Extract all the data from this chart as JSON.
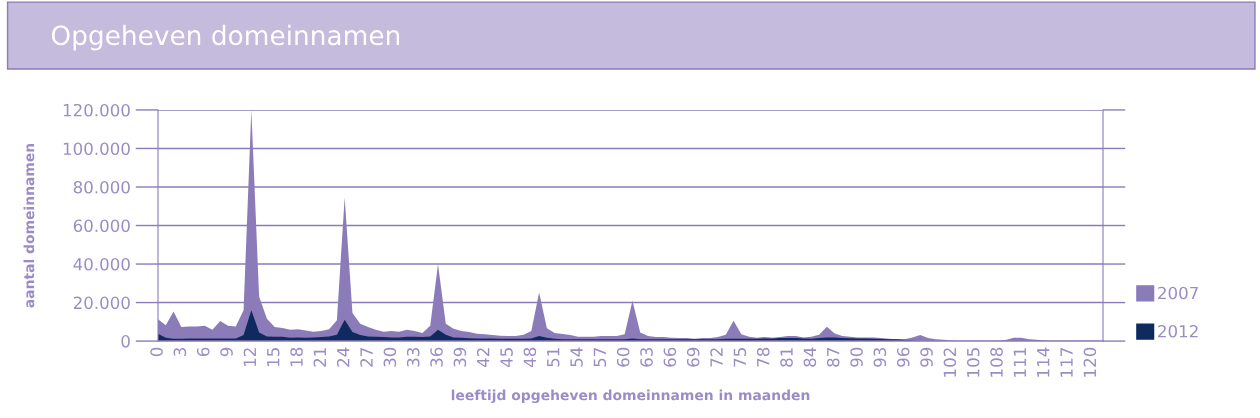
{
  "chart_data": {
    "type": "area",
    "title": "Opgeheven domeinnamen",
    "xlabel": "leeftijd opgeheven domeinnamen in maanden",
    "ylabel": "aantal domeinnamen",
    "x": [
      0,
      1,
      2,
      3,
      4,
      5,
      6,
      7,
      8,
      9,
      10,
      11,
      12,
      13,
      14,
      15,
      16,
      17,
      18,
      19,
      20,
      21,
      22,
      23,
      24,
      25,
      26,
      27,
      28,
      29,
      30,
      31,
      32,
      33,
      34,
      35,
      36,
      37,
      38,
      39,
      40,
      41,
      42,
      43,
      44,
      45,
      46,
      47,
      48,
      49,
      50,
      51,
      52,
      53,
      54,
      55,
      56,
      57,
      58,
      59,
      60,
      61,
      62,
      63,
      64,
      65,
      66,
      67,
      68,
      69,
      70,
      71,
      72,
      73,
      74,
      75,
      76,
      77,
      78,
      79,
      80,
      81,
      82,
      83,
      84,
      85,
      86,
      87,
      88,
      89,
      90,
      91,
      92,
      93,
      94,
      95,
      96,
      97,
      98,
      99,
      100,
      101,
      102,
      103,
      104,
      105,
      106,
      107,
      108,
      109,
      110,
      111,
      112,
      113,
      114,
      115,
      116,
      117,
      118,
      119,
      120,
      121
    ],
    "series": [
      {
        "name": "2007",
        "color": "#8b7bb8",
        "values": [
          11400,
          8200,
          15300,
          7300,
          7600,
          7600,
          8000,
          5900,
          10400,
          8000,
          7600,
          16000,
          120000,
          23200,
          11600,
          7300,
          6800,
          5900,
          6200,
          5500,
          4900,
          5200,
          6200,
          10800,
          74600,
          14600,
          9000,
          7300,
          5900,
          4900,
          5200,
          4900,
          5900,
          5200,
          4200,
          8000,
          39900,
          9000,
          6400,
          5200,
          4700,
          3800,
          3500,
          3100,
          2800,
          2600,
          2600,
          3300,
          5200,
          25200,
          6600,
          4200,
          3700,
          3100,
          2300,
          2300,
          2300,
          2600,
          2600,
          2600,
          3500,
          20900,
          4500,
          2600,
          2100,
          2100,
          1700,
          1600,
          1600,
          1200,
          1600,
          1600,
          2100,
          3300,
          10600,
          3500,
          2300,
          1700,
          2100,
          1700,
          2100,
          2600,
          2600,
          1900,
          2300,
          3300,
          7500,
          4000,
          2600,
          2300,
          1900,
          1900,
          1900,
          1600,
          1200,
          900,
          900,
          1900,
          3100,
          1600,
          900,
          700,
          300,
          200,
          200,
          200,
          200,
          200,
          200,
          500,
          1700,
          1700,
          900,
          700,
          300,
          200,
          200,
          200,
          200,
          200,
          200,
          200
        ]
      },
      {
        "name": "2012",
        "color": "#0f2a5e",
        "values": [
          3800,
          1700,
          1200,
          1200,
          1400,
          1400,
          1400,
          1400,
          1400,
          1400,
          1400,
          3100,
          16000,
          4500,
          2400,
          2300,
          2300,
          1700,
          1900,
          1700,
          1900,
          2100,
          2400,
          3300,
          11100,
          4700,
          3100,
          2400,
          2300,
          2100,
          1900,
          1900,
          2300,
          2300,
          2100,
          2400,
          5900,
          3300,
          1900,
          1700,
          1500,
          1400,
          1400,
          1300,
          1200,
          1200,
          1200,
          1200,
          1400,
          2600,
          1700,
          1200,
          1000,
          1000,
          1000,
          1000,
          1000,
          1000,
          1000,
          1000,
          1000,
          1400,
          1000,
          900,
          900,
          900,
          900,
          900,
          900,
          900,
          900,
          900,
          900,
          1200,
          1200,
          1200,
          1200,
          1200,
          1400,
          1400,
          1600,
          1600,
          1600,
          1400,
          1200,
          1600,
          1900,
          1800,
          1600,
          1500,
          1400,
          1300,
          1200,
          1100,
          1000,
          900,
          700,
          300,
          0,
          0,
          0,
          0,
          0,
          0,
          0,
          0,
          0,
          0,
          0,
          0,
          0,
          0,
          0,
          0,
          0,
          0,
          0,
          0,
          0,
          0,
          0,
          0
        ]
      }
    ],
    "xlim": [
      0,
      121.5
    ],
    "xticks": [
      0,
      3,
      6,
      9,
      12,
      15,
      18,
      21,
      24,
      27,
      30,
      33,
      36,
      39,
      42,
      45,
      48,
      51,
      54,
      57,
      60,
      63,
      66,
      69,
      72,
      75,
      78,
      81,
      84,
      87,
      90,
      93,
      96,
      99,
      102,
      105,
      108,
      111,
      114,
      117,
      120
    ],
    "ylim": [
      0,
      120000
    ],
    "yticks": [
      {
        "value": 0,
        "label": "0"
      },
      {
        "value": 20000,
        "label": "20.000"
      },
      {
        "value": 40000,
        "label": "40.000"
      },
      {
        "value": 60000,
        "label": "60.000"
      },
      {
        "value": 80000,
        "label": "80.000"
      },
      {
        "value": 100000,
        "label": "100.000"
      },
      {
        "value": 120000,
        "label": "120.000"
      }
    ],
    "grid": "y",
    "legend": "right"
  }
}
